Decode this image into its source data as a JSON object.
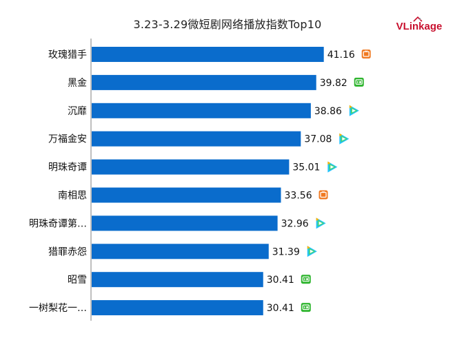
{
  "chart_data": {
    "type": "bar",
    "orientation": "horizontal",
    "title": "3.23-3.29微短剧网络播放指数Top10",
    "xlabel": "",
    "ylabel": "",
    "xlim": [
      0,
      45
    ],
    "grid": false,
    "legend": "none",
    "bar_color": "#0a6ccc",
    "categories": [
      "玫瑰猎手",
      "黑金",
      "沉靡",
      "万福金安",
      "明珠奇谭",
      "南相思",
      "明珠奇谭第…",
      "猎罪赤怨",
      "昭雪",
      "一树梨花一…"
    ],
    "values": [
      41.16,
      39.82,
      38.86,
      37.08,
      35.01,
      33.56,
      32.96,
      31.39,
      30.41,
      30.41
    ],
    "value_labels": [
      "41.16",
      "39.82",
      "38.86",
      "37.08",
      "35.01",
      "33.56",
      "32.96",
      "31.39",
      "30.41",
      "30.41"
    ],
    "platform_icons": [
      "mango-icon",
      "iqiyi-icon",
      "tencent-video-icon",
      "tencent-video-icon",
      "tencent-video-icon",
      "mango-icon",
      "tencent-video-icon",
      "tencent-video-icon",
      "iqiyi-icon",
      "iqiyi-icon"
    ]
  },
  "logo": {
    "text": "VLinkage",
    "color": "#c8102e"
  },
  "icon_colors": {
    "mango-icon": "#f07a22",
    "iqiyi-icon": "#2fb52f",
    "tencent-video-icon-a": "#22c3ff",
    "tencent-video-icon-b": "#ffb400",
    "tencent-video-icon-c": "#42d37a"
  }
}
